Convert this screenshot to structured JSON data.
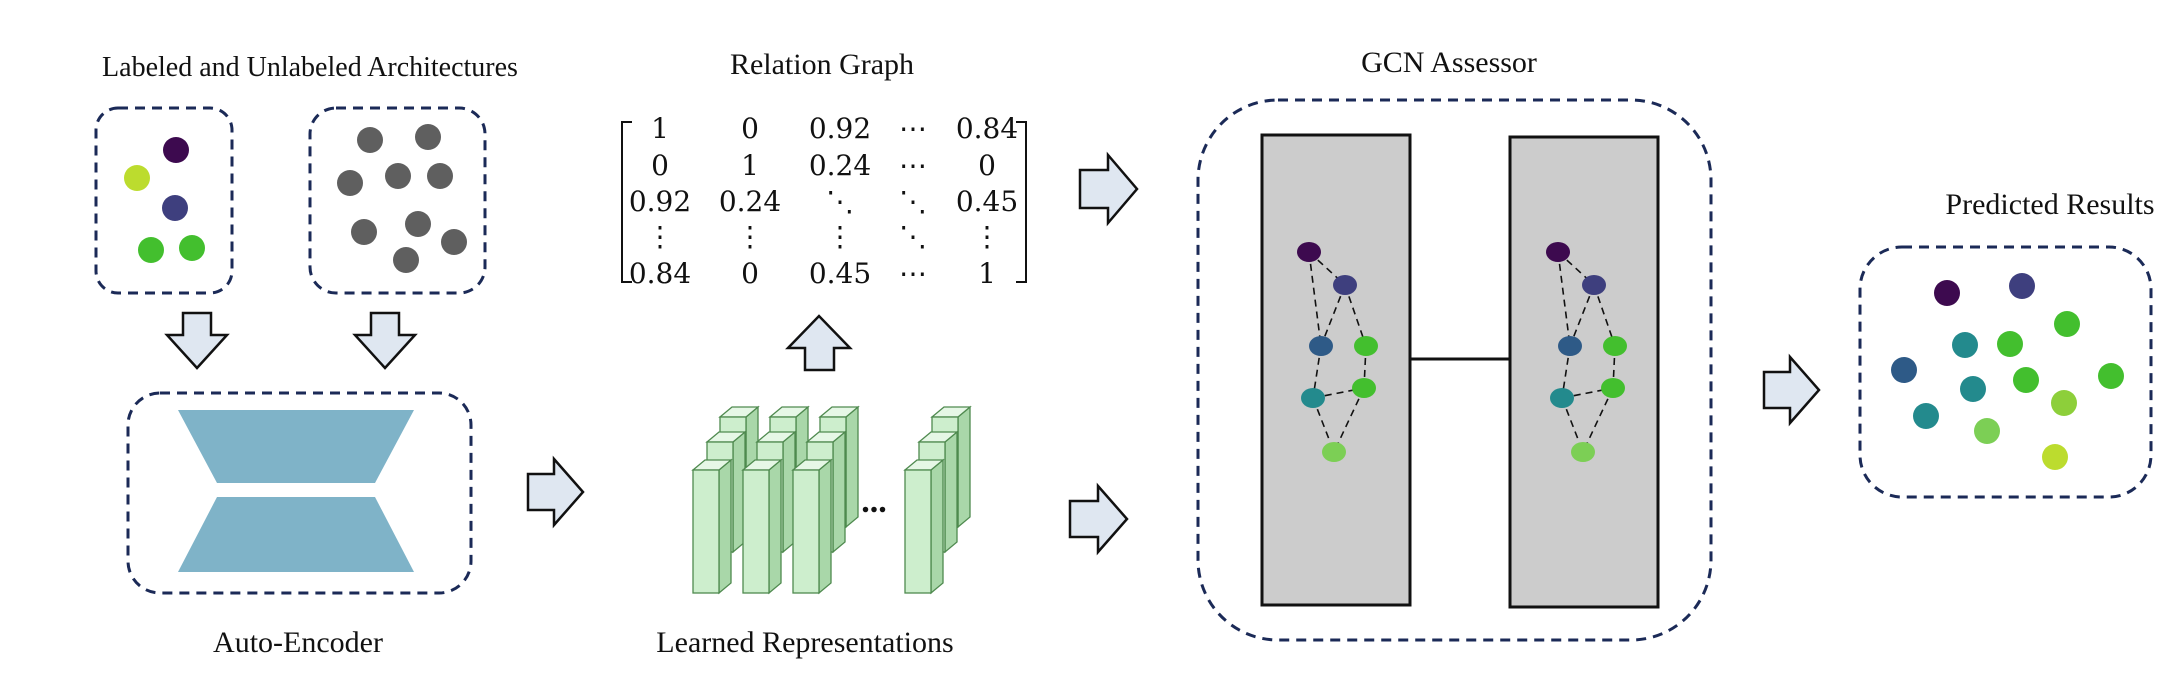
{
  "labels": {
    "architectures": "Labeled and Unlabeled Architectures",
    "relation_graph": "Relation Graph",
    "gcn_assessor": "GCN Assessor",
    "predicted_results": "Predicted Results",
    "auto_encoder": "Auto-Encoder",
    "learned_representations": "Learned Representations",
    "ellipsis": "..."
  },
  "matrix": {
    "rows": [
      [
        "1",
        "0",
        "0.92",
        "⋯",
        "0.84"
      ],
      [
        "0",
        "1",
        "0.24",
        "⋯",
        "0"
      ],
      [
        "0.92",
        "0.24",
        "⋱",
        "⋱",
        "0.45"
      ],
      [
        "⋮",
        "⋮",
        "⋮",
        "⋱",
        "⋮"
      ],
      [
        "0.84",
        "0",
        "0.45",
        "⋯",
        "1"
      ]
    ]
  },
  "colors": {
    "node_dark_purple": "#3d0a4f",
    "node_indigo": "#3e3f7e",
    "node_blue": "#2e5a87",
    "node_teal": "#238a8d",
    "node_green": "#43bf2e",
    "node_light_green": "#7ccf55",
    "node_yellow_green": "#bcdc2e",
    "node_unlabeled_gray": "#5f5f5f",
    "encoder_blue": "#7fb3c8",
    "box_border": "#1b2a57",
    "arrow_fill": "#dfe7f1",
    "panel_gray": "#cccccc",
    "column_green": "#cdeecd"
  }
}
